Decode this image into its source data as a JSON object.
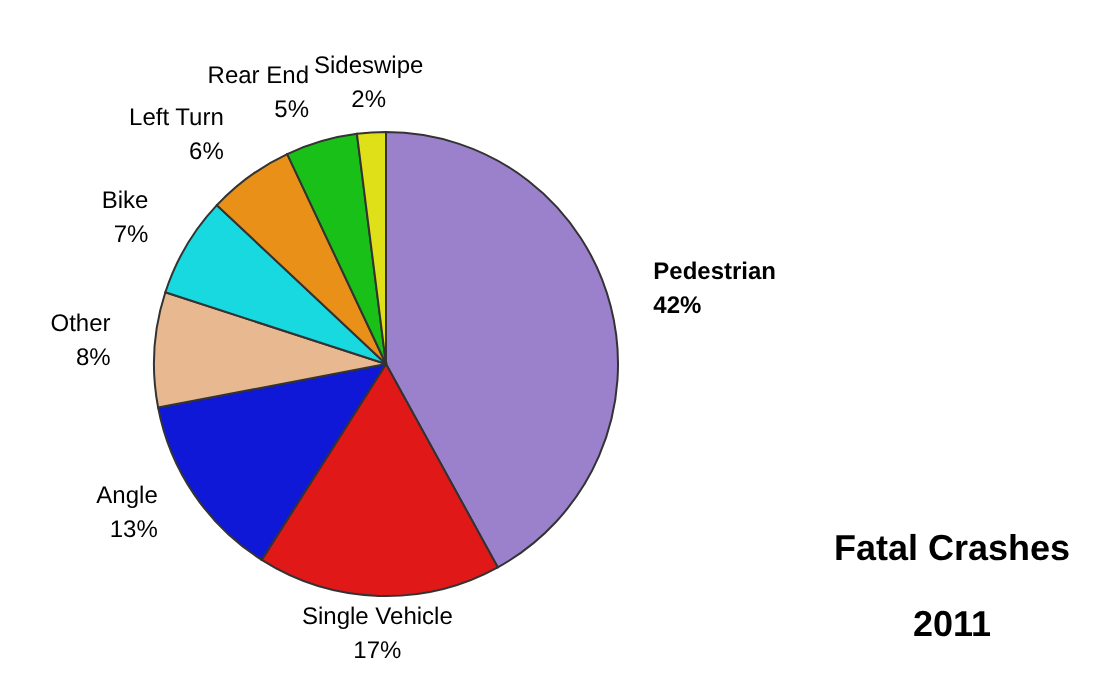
{
  "chart_data": {
    "type": "pie",
    "title": "Fatal Crashes",
    "subtitle": "2011",
    "categories": [
      "Pedestrian",
      "Single Vehicle",
      "Angle",
      "Other",
      "Bike",
      "Left Turn",
      "Rear End",
      "Sideswipe"
    ],
    "values": [
      42,
      17,
      13,
      8,
      7,
      6,
      5,
      2
    ],
    "value_labels": [
      "42%",
      "17%",
      "13%",
      "8%",
      "7%",
      "6%",
      "5%",
      "2%"
    ],
    "colors": [
      "#9b80cc",
      "#e01818",
      "#1018d8",
      "#e8b890",
      "#18d8e0",
      "#e89018",
      "#18c018",
      "#e0e018"
    ]
  }
}
